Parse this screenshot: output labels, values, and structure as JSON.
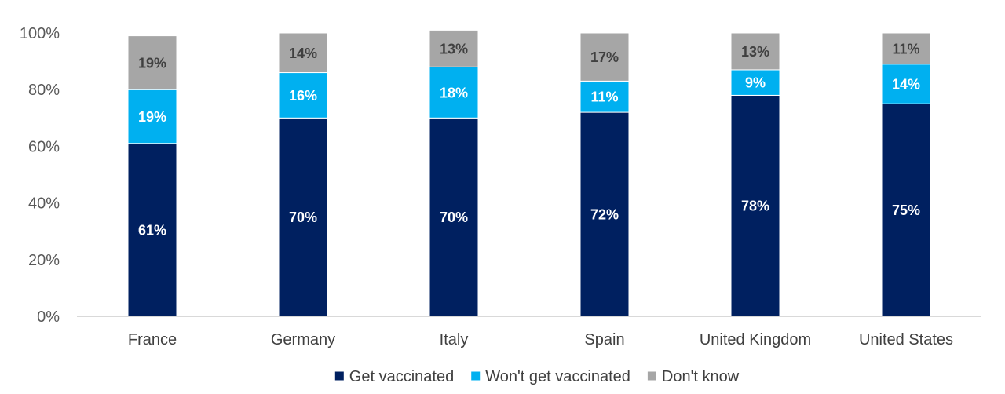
{
  "chart_data": {
    "type": "bar",
    "stacked": true,
    "categories": [
      "France",
      "Germany",
      "Italy",
      "Spain",
      "United Kingdom",
      "United States"
    ],
    "series": [
      {
        "name": "Get vaccinated",
        "values": [
          61,
          70,
          70,
          72,
          78,
          75
        ],
        "color": "#002060",
        "label_color": "#ffffff"
      },
      {
        "name": "Won't get vaccinated",
        "values": [
          19,
          16,
          18,
          11,
          9,
          14
        ],
        "color": "#00B0F0",
        "label_color": "#ffffff"
      },
      {
        "name": "Don't know",
        "values": [
          19,
          14,
          13,
          17,
          13,
          11
        ],
        "color": "#A6A6A6",
        "label_color": "#404040"
      }
    ],
    "value_suffix": "%",
    "ylim": [
      0,
      100
    ],
    "yticks": [
      "0%",
      "20%",
      "40%",
      "60%",
      "80%",
      "100%"
    ],
    "title": "",
    "xlabel": "",
    "ylabel": "",
    "grid": false,
    "legend_position": "bottom-center"
  }
}
